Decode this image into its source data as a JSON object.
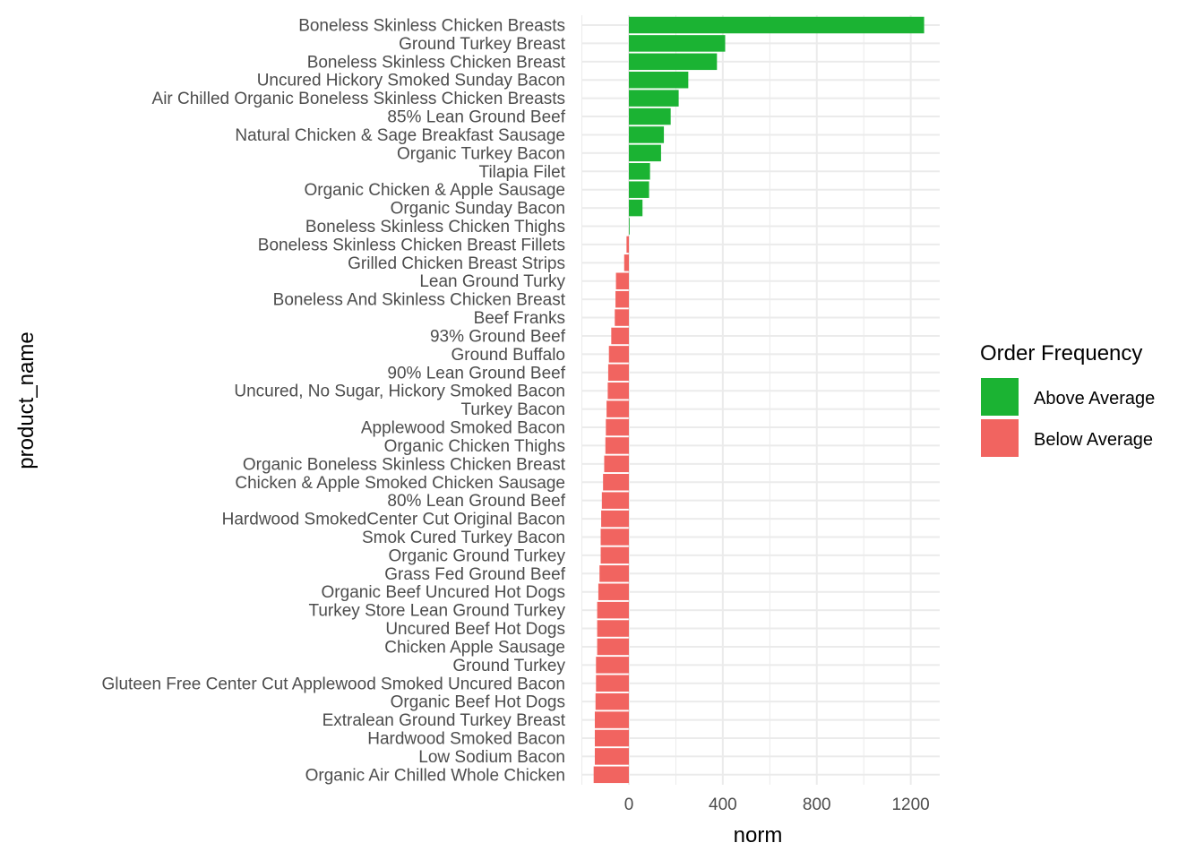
{
  "chart_data": {
    "type": "bar",
    "orientation": "horizontal",
    "xlabel": "norm",
    "ylabel": "product_name",
    "xlim": [
      -200,
      1320
    ],
    "xticks": [
      0,
      400,
      800,
      1200
    ],
    "grid": true,
    "legend": {
      "title": "Order Frequency",
      "placement": "right",
      "entries": [
        {
          "label": "Above Average",
          "color": "#1bb333"
        },
        {
          "label": "Below Average",
          "color": "#f16460"
        }
      ]
    },
    "categories": [
      "Boneless Skinless Chicken Breasts",
      "Ground Turkey Breast",
      "Boneless Skinless Chicken Breast",
      "Uncured Hickory Smoked Sunday Bacon",
      "Air Chilled Organic Boneless Skinless Chicken Breasts",
      "85% Lean Ground Beef",
      "Natural Chicken & Sage Breakfast Sausage",
      "Organic Turkey Bacon",
      "Tilapia Filet",
      "Organic Chicken & Apple Sausage",
      "Organic Sunday Bacon",
      "Boneless Skinless Chicken Thighs",
      "Boneless Skinless Chicken Breast Fillets",
      "Grilled Chicken Breast Strips",
      "Lean Ground Turky",
      "Boneless And Skinless Chicken Breast",
      "Beef Franks",
      "93% Ground Beef",
      "Ground Buffalo",
      "90% Lean Ground Beef",
      "Uncured, No Sugar, Hickory Smoked Bacon",
      "Turkey Bacon",
      "Applewood Smoked Bacon",
      "Organic Chicken Thighs",
      "Organic Boneless Skinless Chicken Breast",
      "Chicken & Apple Smoked Chicken Sausage",
      "80% Lean Ground Beef",
      "Hardwood SmokedCenter Cut Original Bacon",
      "Smok Cured Turkey Bacon",
      "Organic Ground Turkey",
      "Grass Fed Ground Beef",
      "Organic Beef Uncured Hot Dogs",
      "Turkey Store Lean Ground Turkey",
      "Uncured Beef Hot Dogs",
      "Chicken Apple Sausage",
      "Ground Turkey",
      "Gluteen Free Center Cut Applewood Smoked Uncured Bacon",
      "Organic Beef Hot Dogs",
      "Extralean Ground Turkey Breast",
      "Hardwood Smoked Bacon",
      "Low Sodium Bacon",
      "Organic Air Chilled Whole Chicken"
    ],
    "values": [
      1257,
      410,
      375,
      253,
      212,
      178,
      149,
      137,
      90,
      86,
      58,
      2,
      -10,
      -20,
      -55,
      -57,
      -60,
      -75,
      -85,
      -88,
      -90,
      -95,
      -98,
      -100,
      -105,
      -110,
      -115,
      -118,
      -120,
      -120,
      -125,
      -130,
      -135,
      -135,
      -135,
      -140,
      -140,
      -142,
      -145,
      -145,
      -145,
      -150
    ],
    "groups": [
      "Above Average",
      "Above Average",
      "Above Average",
      "Above Average",
      "Above Average",
      "Above Average",
      "Above Average",
      "Above Average",
      "Above Average",
      "Above Average",
      "Above Average",
      "Above Average",
      "Below Average",
      "Below Average",
      "Below Average",
      "Below Average",
      "Below Average",
      "Below Average",
      "Below Average",
      "Below Average",
      "Below Average",
      "Below Average",
      "Below Average",
      "Below Average",
      "Below Average",
      "Below Average",
      "Below Average",
      "Below Average",
      "Below Average",
      "Below Average",
      "Below Average",
      "Below Average",
      "Below Average",
      "Below Average",
      "Below Average",
      "Below Average",
      "Below Average",
      "Below Average",
      "Below Average",
      "Below Average",
      "Below Average",
      "Below Average"
    ]
  }
}
